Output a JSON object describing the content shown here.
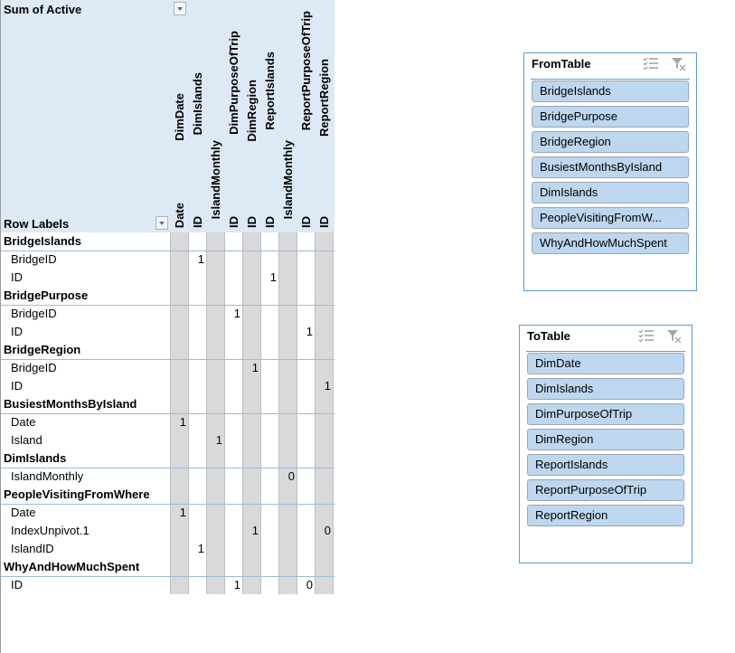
{
  "pivot": {
    "value_field": "Sum of Active",
    "row_labels_header": "Row Labels",
    "column_groups": [
      "DimDate",
      "DimIslands",
      "",
      "DimPurposeOfTrip",
      "DimRegion",
      "ReportIslands",
      "",
      "ReportPurposeOfTrip",
      "ReportRegion"
    ],
    "column_fields": [
      "Date",
      "ID",
      "IslandMonthly",
      "ID",
      "ID",
      "ID",
      "IslandMonthly",
      "ID",
      "ID"
    ],
    "rows": [
      {
        "type": "group",
        "label": "BridgeIslands",
        "values": [
          "",
          "",
          "",
          "",
          "",
          "",
          "",
          "",
          ""
        ]
      },
      {
        "type": "child",
        "label": "BridgeID",
        "values": [
          "",
          "1",
          "",
          "",
          "",
          "",
          "",
          "",
          ""
        ]
      },
      {
        "type": "child",
        "label": "ID",
        "values": [
          "",
          "",
          "",
          "",
          "",
          "1",
          "",
          "",
          ""
        ]
      },
      {
        "type": "group",
        "label": "BridgePurpose",
        "values": [
          "",
          "",
          "",
          "",
          "",
          "",
          "",
          "",
          ""
        ]
      },
      {
        "type": "child",
        "label": "BridgeID",
        "values": [
          "",
          "",
          "",
          "1",
          "",
          "",
          "",
          "",
          ""
        ]
      },
      {
        "type": "child",
        "label": "ID",
        "values": [
          "",
          "",
          "",
          "",
          "",
          "",
          "",
          "1",
          ""
        ]
      },
      {
        "type": "group",
        "label": "BridgeRegion",
        "values": [
          "",
          "",
          "",
          "",
          "",
          "",
          "",
          "",
          ""
        ]
      },
      {
        "type": "child",
        "label": "BridgeID",
        "values": [
          "",
          "",
          "",
          "",
          "1",
          "",
          "",
          "",
          ""
        ]
      },
      {
        "type": "child",
        "label": "ID",
        "values": [
          "",
          "",
          "",
          "",
          "",
          "",
          "",
          "",
          "1"
        ]
      },
      {
        "type": "group",
        "label": "BusiestMonthsByIsland",
        "values": [
          "",
          "",
          "",
          "",
          "",
          "",
          "",
          "",
          ""
        ]
      },
      {
        "type": "child",
        "label": "Date",
        "values": [
          "1",
          "",
          "",
          "",
          "",
          "",
          "",
          "",
          ""
        ]
      },
      {
        "type": "child",
        "label": "Island",
        "values": [
          "",
          "",
          "1",
          "",
          "",
          "",
          "",
          "",
          ""
        ]
      },
      {
        "type": "group",
        "label": "DimIslands",
        "values": [
          "",
          "",
          "",
          "",
          "",
          "",
          "",
          "",
          ""
        ]
      },
      {
        "type": "child",
        "label": "IslandMonthly",
        "values": [
          "",
          "",
          "",
          "",
          "",
          "",
          "0",
          "",
          ""
        ]
      },
      {
        "type": "group",
        "label": "PeopleVisitingFromWhere",
        "values": [
          "",
          "",
          "",
          "",
          "",
          "",
          "",
          "",
          ""
        ]
      },
      {
        "type": "child",
        "label": "Date",
        "values": [
          "1",
          "",
          "",
          "",
          "",
          "",
          "",
          "",
          ""
        ]
      },
      {
        "type": "child",
        "label": "IndexUnpivot.1",
        "values": [
          "",
          "",
          "",
          "",
          "1",
          "",
          "",
          "",
          "0"
        ]
      },
      {
        "type": "child",
        "label": "IslandID",
        "values": [
          "",
          "1",
          "",
          "",
          "",
          "",
          "",
          "",
          ""
        ]
      },
      {
        "type": "group",
        "label": "WhyAndHowMuchSpent",
        "values": [
          "",
          "",
          "",
          "",
          "",
          "",
          "",
          "",
          ""
        ]
      },
      {
        "type": "child",
        "label": "ID",
        "values": [
          "",
          "",
          "",
          "1",
          "",
          "",
          "",
          "0",
          ""
        ]
      }
    ]
  },
  "slicers": [
    {
      "title": "FromTable",
      "items": [
        "BridgeIslands",
        "BridgePurpose",
        "BridgeRegion",
        "BusiestMonthsByIsland",
        "DimIslands",
        "PeopleVisitingFromW...",
        "WhyAndHowMuchSpent"
      ]
    },
    {
      "title": "ToTable",
      "items": [
        "DimDate",
        "DimIslands",
        "DimPurposeOfTrip",
        "DimRegion",
        "ReportIslands",
        "ReportPurposeOfTrip",
        "ReportRegion"
      ]
    }
  ],
  "icons": {
    "multi_select": "multi-select-icon",
    "clear_filter": "clear-filter-icon",
    "dropdown": "chevron-down-icon"
  },
  "colors": {
    "header_bg": "#dde9f5",
    "alt_col": "#d9d9d9",
    "slicer_item": "#bdd7ee",
    "slicer_border": "#5b9bd5",
    "row_line": "#9bbbe0"
  }
}
